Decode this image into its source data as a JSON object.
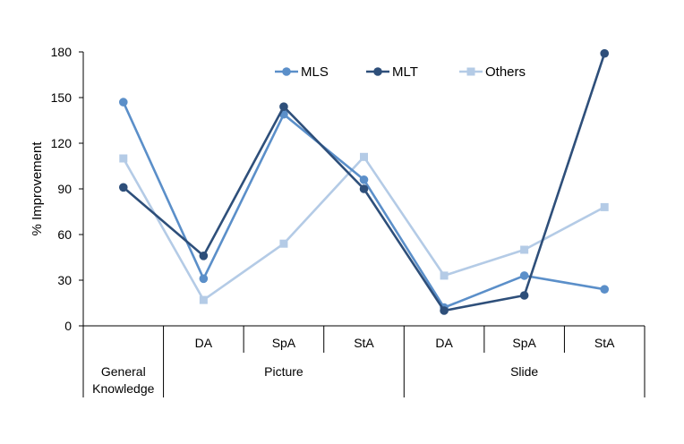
{
  "chart_data": {
    "type": "line",
    "title": "",
    "ylabel": "% Improvement",
    "xlabel": "",
    "ylim": [
      0,
      180
    ],
    "yticks": [
      0,
      30,
      60,
      90,
      120,
      150,
      180
    ],
    "categories": [
      "General Knowledge",
      "Picture DA",
      "Picture SpA",
      "Picture StA",
      "Slide DA",
      "Slide SpA",
      "Slide StA"
    ],
    "subcategory_labels": [
      "",
      "DA",
      "SpA",
      "StA",
      "DA",
      "SpA",
      "StA"
    ],
    "groups": [
      {
        "label_lines": [
          "General",
          "Knowledge"
        ]
      },
      {
        "label_lines": [
          "Picture"
        ]
      },
      {
        "label_lines": [
          "Slide"
        ]
      }
    ],
    "legend_position": "top",
    "series": [
      {
        "name": "MLS",
        "marker": "circle",
        "color": "#5B8FC9",
        "values": [
          147,
          31,
          139,
          96,
          12,
          33,
          24
        ]
      },
      {
        "name": "MLT",
        "marker": "circle",
        "color": "#2E4F7A",
        "values": [
          91,
          46,
          144,
          90,
          10,
          20,
          179
        ]
      },
      {
        "name": "Others",
        "marker": "square",
        "color": "#B4CBE6",
        "values": [
          110,
          17,
          54,
          111,
          33,
          50,
          78
        ]
      }
    ]
  }
}
